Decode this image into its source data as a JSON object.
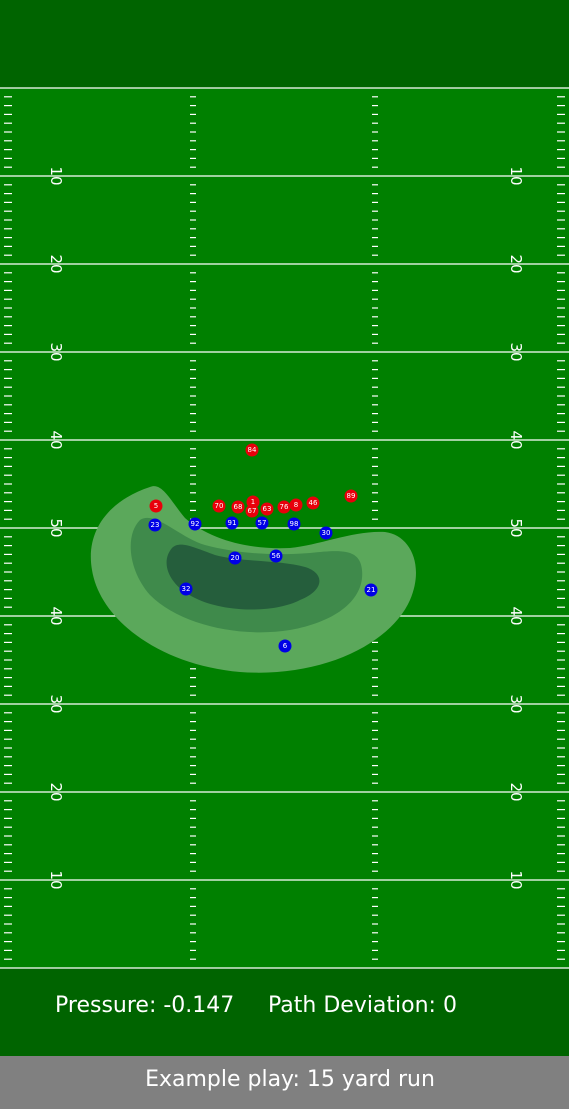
{
  "colors": {
    "endzone": "#006400",
    "field": "#008000",
    "line": "#ffffff",
    "footer": "#808080",
    "offense": "#e8000b",
    "defense": "#0000e6",
    "pressure_levels": [
      "#5ba85b",
      "#3f8a4b",
      "#255e3c"
    ]
  },
  "field": {
    "yard_numbers": [
      "10",
      "20",
      "30",
      "40",
      "50",
      "40",
      "30",
      "20",
      "10"
    ]
  },
  "offense": [
    {
      "jersey": "84"
    },
    {
      "jersey": "5"
    },
    {
      "jersey": "70"
    },
    {
      "jersey": "68"
    },
    {
      "jersey": "1"
    },
    {
      "jersey": "67"
    },
    {
      "jersey": "63"
    },
    {
      "jersey": "76"
    },
    {
      "jersey": "8"
    },
    {
      "jersey": "46"
    },
    {
      "jersey": "89"
    }
  ],
  "defense": [
    {
      "jersey": "23"
    },
    {
      "jersey": "92"
    },
    {
      "jersey": "91"
    },
    {
      "jersey": "57"
    },
    {
      "jersey": "98"
    },
    {
      "jersey": "30"
    },
    {
      "jersey": "20"
    },
    {
      "jersey": "56"
    },
    {
      "jersey": "32"
    },
    {
      "jersey": "21"
    },
    {
      "jersey": "6"
    }
  ],
  "stats": {
    "pressure_label": "Pressure: -0.147",
    "deviation_label": "Path Deviation: 0"
  },
  "caption": "Example play: 15 yard run"
}
